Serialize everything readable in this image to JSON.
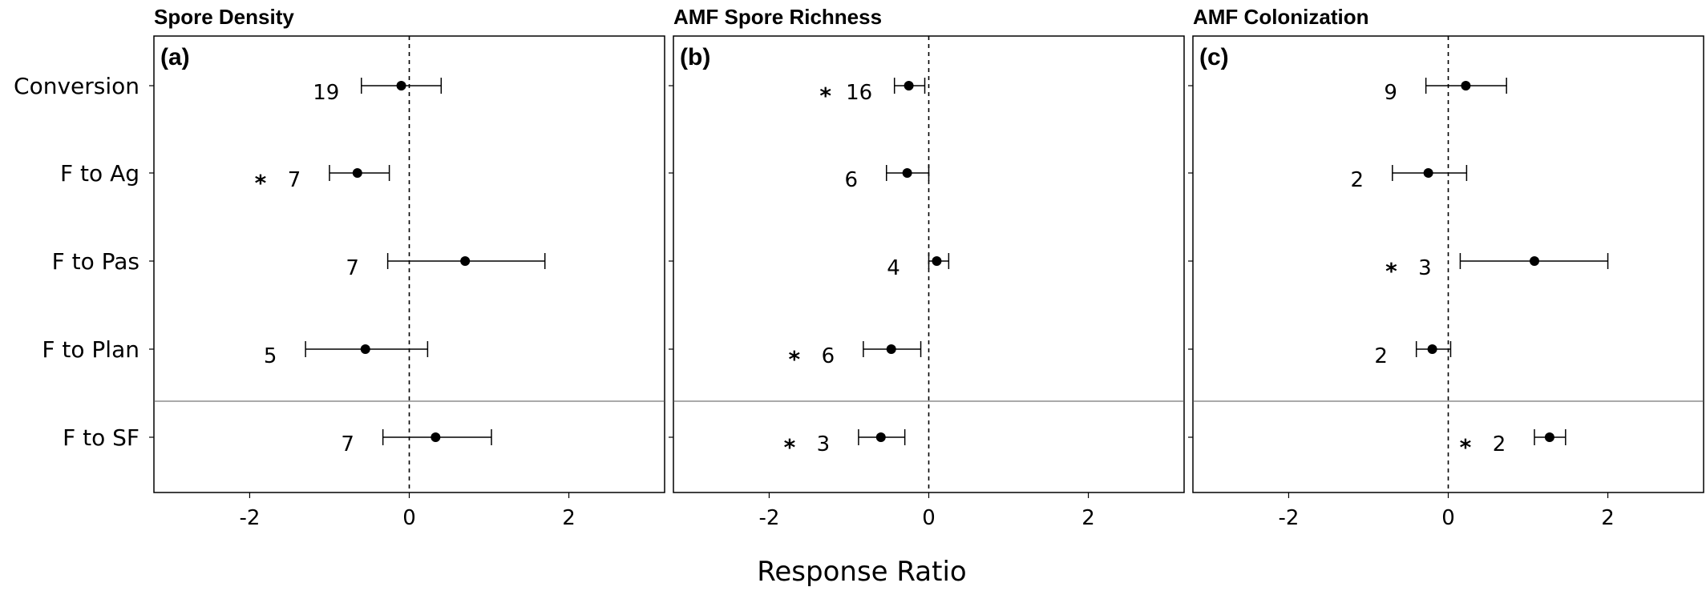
{
  "chart_data": {
    "type": "forest",
    "xlabel": "Response Ratio",
    "xlim": [
      -3.2,
      3.2
    ],
    "xticks": [
      -2,
      0,
      2
    ],
    "xtick_labels": [
      "-2",
      "0",
      "2"
    ],
    "reference_line": 0,
    "categories": [
      "Conversion",
      "F to Ag",
      "F to Pas",
      "F to Plan",
      "F to SF"
    ],
    "panels": [
      {
        "tag": "(a)",
        "title": "Spore Density",
        "points": [
          {
            "category": "Conversion",
            "estimate": -0.1,
            "ci_low": -0.6,
            "ci_high": 0.4,
            "n": "19",
            "significant": false
          },
          {
            "category": "F to Ag",
            "estimate": -0.65,
            "ci_low": -1.0,
            "ci_high": -0.25,
            "n": "7",
            "significant": true
          },
          {
            "category": "F to Pas",
            "estimate": 0.7,
            "ci_low": -0.27,
            "ci_high": 1.7,
            "n": "7",
            "significant": false
          },
          {
            "category": "F to Plan",
            "estimate": -0.55,
            "ci_low": -1.3,
            "ci_high": 0.23,
            "n": "5",
            "significant": false
          },
          {
            "category": "F to SF",
            "estimate": 0.33,
            "ci_low": -0.33,
            "ci_high": 1.03,
            "n": "7",
            "significant": false
          }
        ]
      },
      {
        "tag": "(b)",
        "title": "AMF Spore Richness",
        "points": [
          {
            "category": "Conversion",
            "estimate": -0.25,
            "ci_low": -0.43,
            "ci_high": -0.05,
            "n": "16",
            "significant": true
          },
          {
            "category": "F to Ag",
            "estimate": -0.27,
            "ci_low": -0.53,
            "ci_high": 0.0,
            "n": "6",
            "significant": false
          },
          {
            "category": "F to Pas",
            "estimate": 0.1,
            "ci_low": 0.0,
            "ci_high": 0.25,
            "n": "4",
            "significant": false
          },
          {
            "category": "F to Plan",
            "estimate": -0.47,
            "ci_low": -0.82,
            "ci_high": -0.1,
            "n": "6",
            "significant": true
          },
          {
            "category": "F to SF",
            "estimate": -0.6,
            "ci_low": -0.88,
            "ci_high": -0.3,
            "n": "3",
            "significant": true
          }
        ]
      },
      {
        "tag": "(c)",
        "title": "AMF Colonization",
        "points": [
          {
            "category": "Conversion",
            "estimate": 0.22,
            "ci_low": -0.28,
            "ci_high": 0.73,
            "n": "9",
            "significant": false
          },
          {
            "category": "F to Ag",
            "estimate": -0.25,
            "ci_low": -0.7,
            "ci_high": 0.23,
            "n": "2",
            "significant": false
          },
          {
            "category": "F to Pas",
            "estimate": 1.08,
            "ci_low": 0.15,
            "ci_high": 2.0,
            "n": "3",
            "significant": true
          },
          {
            "category": "F to Plan",
            "estimate": -0.2,
            "ci_low": -0.4,
            "ci_high": 0.03,
            "n": "2",
            "significant": false
          },
          {
            "category": "F to SF",
            "estimate": 1.27,
            "ci_low": 1.08,
            "ci_high": 1.47,
            "n": "2",
            "significant": true
          }
        ]
      }
    ],
    "significance_marker": "*",
    "grid": false
  }
}
